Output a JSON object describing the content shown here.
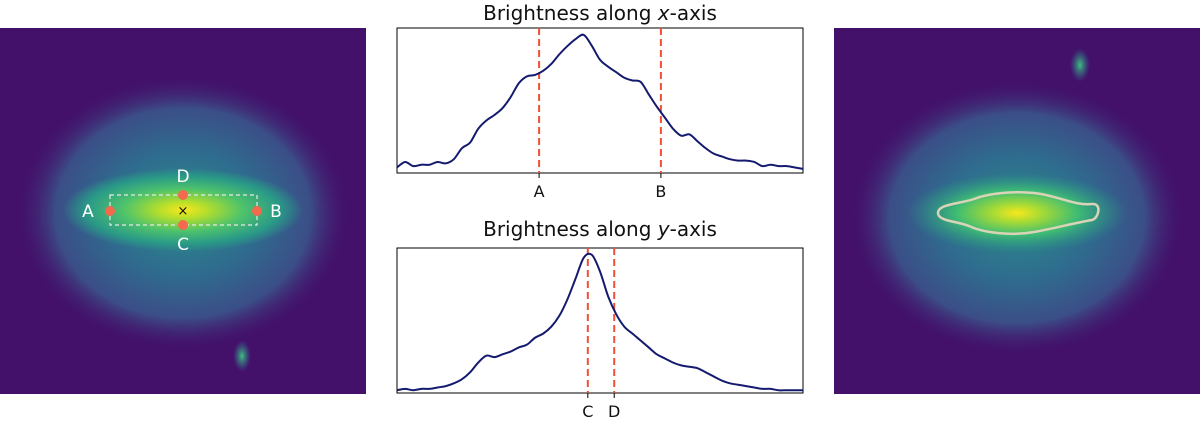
{
  "left_image": {
    "point_labels": [
      "A",
      "B",
      "C",
      "D"
    ],
    "center_marker": "×",
    "colors": {
      "background": "#43106a",
      "halo": "#2c6f8e",
      "core": "#5fcf64",
      "peak": "#f5e61f",
      "points": "#f46a4e",
      "box": "#e8e8e8"
    }
  },
  "right_image": {
    "colors": {
      "background": "#43106a",
      "contour": "#d9d3b8",
      "peak": "#f5e61f"
    }
  },
  "chart_data": [
    {
      "type": "line",
      "title_prefix": "Brightness along ",
      "title_axis": "x",
      "title_suffix": "-axis",
      "xlim": [
        0,
        100
      ],
      "ylim": [
        0,
        1.05
      ],
      "x": [
        0,
        2,
        4,
        6,
        8,
        10,
        12,
        14,
        16,
        18,
        20,
        22,
        24,
        26,
        28,
        30,
        32,
        34,
        36,
        38,
        40,
        42,
        44,
        46,
        48,
        50,
        52,
        54,
        56,
        58,
        60,
        62,
        64,
        66,
        68,
        70,
        72,
        74,
        76,
        78,
        80,
        82,
        84,
        86,
        88,
        90,
        92,
        94,
        96,
        98,
        100
      ],
      "y": [
        0.04,
        0.08,
        0.05,
        0.06,
        0.06,
        0.08,
        0.07,
        0.1,
        0.18,
        0.22,
        0.32,
        0.38,
        0.42,
        0.47,
        0.55,
        0.65,
        0.7,
        0.71,
        0.74,
        0.79,
        0.86,
        0.92,
        0.97,
        1.0,
        0.92,
        0.82,
        0.77,
        0.73,
        0.69,
        0.67,
        0.66,
        0.57,
        0.48,
        0.4,
        0.32,
        0.27,
        0.28,
        0.23,
        0.18,
        0.14,
        0.12,
        0.1,
        0.09,
        0.09,
        0.08,
        0.05,
        0.06,
        0.05,
        0.05,
        0.04,
        0.03
      ],
      "markers": [
        {
          "label": "A",
          "x": 35
        },
        {
          "label": "B",
          "x": 65
        }
      ],
      "colors": {
        "line": "#141a6e",
        "marker": "#f05035"
      },
      "grid": false
    },
    {
      "type": "line",
      "title_prefix": "Brightness along ",
      "title_axis": "y",
      "title_suffix": "-axis",
      "xlim": [
        0,
        100
      ],
      "ylim": [
        0,
        1.05
      ],
      "x": [
        0,
        2,
        4,
        6,
        8,
        10,
        12,
        14,
        16,
        18,
        20,
        22,
        24,
        26,
        28,
        30,
        32,
        34,
        36,
        38,
        40,
        42,
        44,
        46,
        48,
        50,
        52,
        54,
        56,
        58,
        60,
        62,
        64,
        66,
        68,
        70,
        72,
        74,
        76,
        78,
        80,
        82,
        84,
        86,
        88,
        90,
        92,
        94,
        96,
        98,
        100
      ],
      "y": [
        0.02,
        0.03,
        0.02,
        0.03,
        0.03,
        0.04,
        0.05,
        0.07,
        0.1,
        0.15,
        0.22,
        0.27,
        0.26,
        0.28,
        0.3,
        0.33,
        0.35,
        0.4,
        0.43,
        0.48,
        0.56,
        0.68,
        0.83,
        0.98,
        1.0,
        0.88,
        0.7,
        0.57,
        0.48,
        0.43,
        0.38,
        0.33,
        0.28,
        0.25,
        0.22,
        0.2,
        0.19,
        0.18,
        0.15,
        0.12,
        0.09,
        0.07,
        0.06,
        0.05,
        0.04,
        0.03,
        0.03,
        0.02,
        0.02,
        0.02,
        0.02
      ],
      "markers": [
        {
          "label": "C",
          "x": 47
        },
        {
          "label": "D",
          "x": 53.5
        }
      ],
      "colors": {
        "line": "#141a6e",
        "marker": "#f05035"
      },
      "grid": false
    }
  ]
}
